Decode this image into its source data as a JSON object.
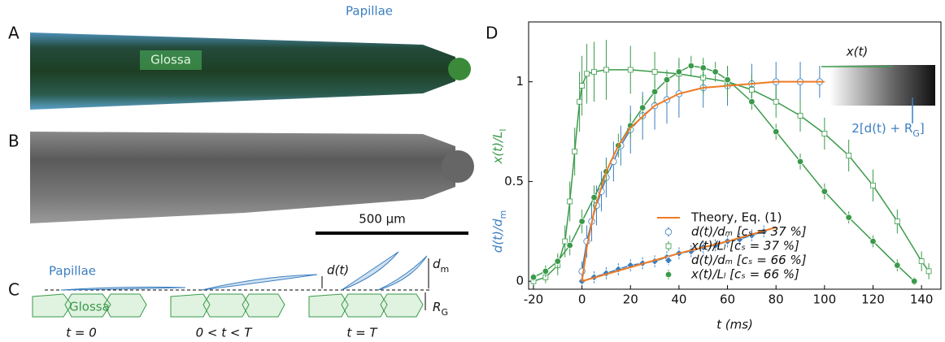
{
  "panels": {
    "A": {
      "letter": "A",
      "papillae": "Papillae",
      "glossa": "Glossa"
    },
    "B": {
      "letter": "B",
      "scale_bar": "500 µm"
    },
    "C": {
      "letter": "C",
      "papillae": "Papillae",
      "glossa": "Glossa",
      "d": "d(t)",
      "d_m": [
        "d",
        "m"
      ],
      "r_g": [
        "R",
        "G"
      ],
      "stages": [
        "t = 0",
        "0 < t < T",
        "t = T"
      ]
    },
    "D": {
      "letter": "D",
      "inset_x": "x(t)",
      "inset_d": [
        "2[d(t) + R",
        "G",
        "]"
      ]
    }
  },
  "chart_data": {
    "type": "scatter",
    "x_label": "t (ms)",
    "y_label": [
      {
        "parts": [
          "d(t)/d",
          "m"
        ],
        "color": "#3b7fc0"
      },
      {
        "parts": [
          "x(t)/L",
          "l"
        ],
        "color": "#3a9a4a"
      }
    ],
    "xlim": [
      -22,
      148
    ],
    "ylim": [
      -0.04,
      1.3
    ],
    "xticks": [
      -20,
      0,
      20,
      40,
      60,
      80,
      100,
      120,
      140
    ],
    "yticks": [
      0,
      0.5,
      1
    ],
    "theory": {
      "name": "Theory, Eq. (1)",
      "color": "#f07a23",
      "curves": [
        {
          "x": [
            0,
            2,
            5,
            10,
            15,
            20,
            30,
            40,
            50,
            60,
            70,
            80,
            90,
            100
          ],
          "values": [
            0,
            0.17,
            0.35,
            0.55,
            0.68,
            0.77,
            0.88,
            0.94,
            0.97,
            0.98,
            0.99,
            1.0,
            1.0,
            1.0
          ]
        },
        {
          "x": [
            0,
            20,
            40,
            60,
            80
          ],
          "values": [
            0,
            0.07,
            0.14,
            0.2,
            0.27
          ]
        }
      ]
    },
    "series": [
      {
        "name": "d(t)/dₘ   [cₛ = 37 %]",
        "color": "#3b7fc0",
        "marker": "circle",
        "filled": false,
        "x": [
          0,
          2,
          4,
          6,
          8,
          10,
          13,
          16,
          20,
          25,
          30,
          35,
          40,
          50,
          60,
          70,
          80,
          90,
          98
        ],
        "values": [
          0.05,
          0.2,
          0.3,
          0.38,
          0.45,
          0.52,
          0.6,
          0.68,
          0.76,
          0.83,
          0.88,
          0.91,
          0.94,
          0.97,
          0.98,
          0.99,
          1.0,
          1.0,
          1.0
        ],
        "errors": [
          0.05,
          0.08,
          0.1,
          0.1,
          0.1,
          0.1,
          0.1,
          0.1,
          0.12,
          0.12,
          0.12,
          0.12,
          0.12,
          0.1,
          0.1,
          0.1,
          0.1,
          0.1,
          0.08
        ]
      },
      {
        "name": "x(t)/Lₗ   [cₛ = 37 %]",
        "color": "#3a9a4a",
        "marker": "square",
        "filled": false,
        "x": [
          -20,
          -15,
          -10,
          -7,
          -5,
          -3,
          -1,
          0,
          2,
          5,
          10,
          20,
          30,
          40,
          50,
          60,
          70,
          80,
          90,
          100,
          110,
          120,
          130,
          140,
          143
        ],
        "values": [
          0.0,
          0.02,
          0.08,
          0.2,
          0.4,
          0.65,
          0.9,
          0.98,
          1.04,
          1.05,
          1.06,
          1.06,
          1.05,
          1.04,
          1.02,
          1.0,
          0.96,
          0.9,
          0.83,
          0.74,
          0.63,
          0.48,
          0.3,
          0.1,
          0.05
        ],
        "errors": [
          0.02,
          0.03,
          0.05,
          0.08,
          0.1,
          0.12,
          0.15,
          0.15,
          0.15,
          0.15,
          0.15,
          0.12,
          0.1,
          0.08,
          0.08,
          0.08,
          0.08,
          0.08,
          0.08,
          0.08,
          0.08,
          0.08,
          0.06,
          0.05,
          0.04
        ]
      },
      {
        "name": "d(t)/dₘ   [cₛ = 66 %]",
        "color": "#3b7fc0",
        "marker": "diamond",
        "filled": true,
        "x": [
          0,
          5,
          10,
          15,
          20,
          25,
          30,
          35,
          40,
          45,
          50,
          55,
          60,
          65,
          70,
          75
        ],
        "values": [
          0.0,
          0.02,
          0.04,
          0.06,
          0.08,
          0.09,
          0.1,
          0.12,
          0.14,
          0.15,
          0.17,
          0.18,
          0.2,
          0.21,
          0.23,
          0.25
        ],
        "errors": [
          0.02,
          0.03,
          0.03,
          0.03,
          0.03,
          0.03,
          0.03,
          0.03,
          0.03,
          0.03,
          0.03,
          0.03,
          0.03,
          0.03,
          0.03,
          0.03
        ]
      },
      {
        "name": "x(t)/Lₗ   [cₛ = 66 %]",
        "color": "#3a9a4a",
        "marker": "circle",
        "filled": true,
        "x": [
          -20,
          -15,
          -10,
          -5,
          0,
          5,
          10,
          15,
          20,
          25,
          30,
          35,
          40,
          45,
          50,
          55,
          60,
          70,
          80,
          90,
          100,
          110,
          120,
          130,
          137
        ],
        "values": [
          0.02,
          0.05,
          0.1,
          0.18,
          0.3,
          0.42,
          0.55,
          0.68,
          0.78,
          0.87,
          0.95,
          1.01,
          1.05,
          1.08,
          1.07,
          1.05,
          1.01,
          0.9,
          0.75,
          0.6,
          0.45,
          0.32,
          0.2,
          0.08,
          0.0
        ],
        "errors": [
          0.02,
          0.03,
          0.04,
          0.05,
          0.06,
          0.06,
          0.06,
          0.06,
          0.06,
          0.06,
          0.06,
          0.05,
          0.05,
          0.05,
          0.05,
          0.05,
          0.05,
          0.04,
          0.04,
          0.04,
          0.04,
          0.03,
          0.03,
          0.03,
          0.02
        ]
      }
    ]
  }
}
